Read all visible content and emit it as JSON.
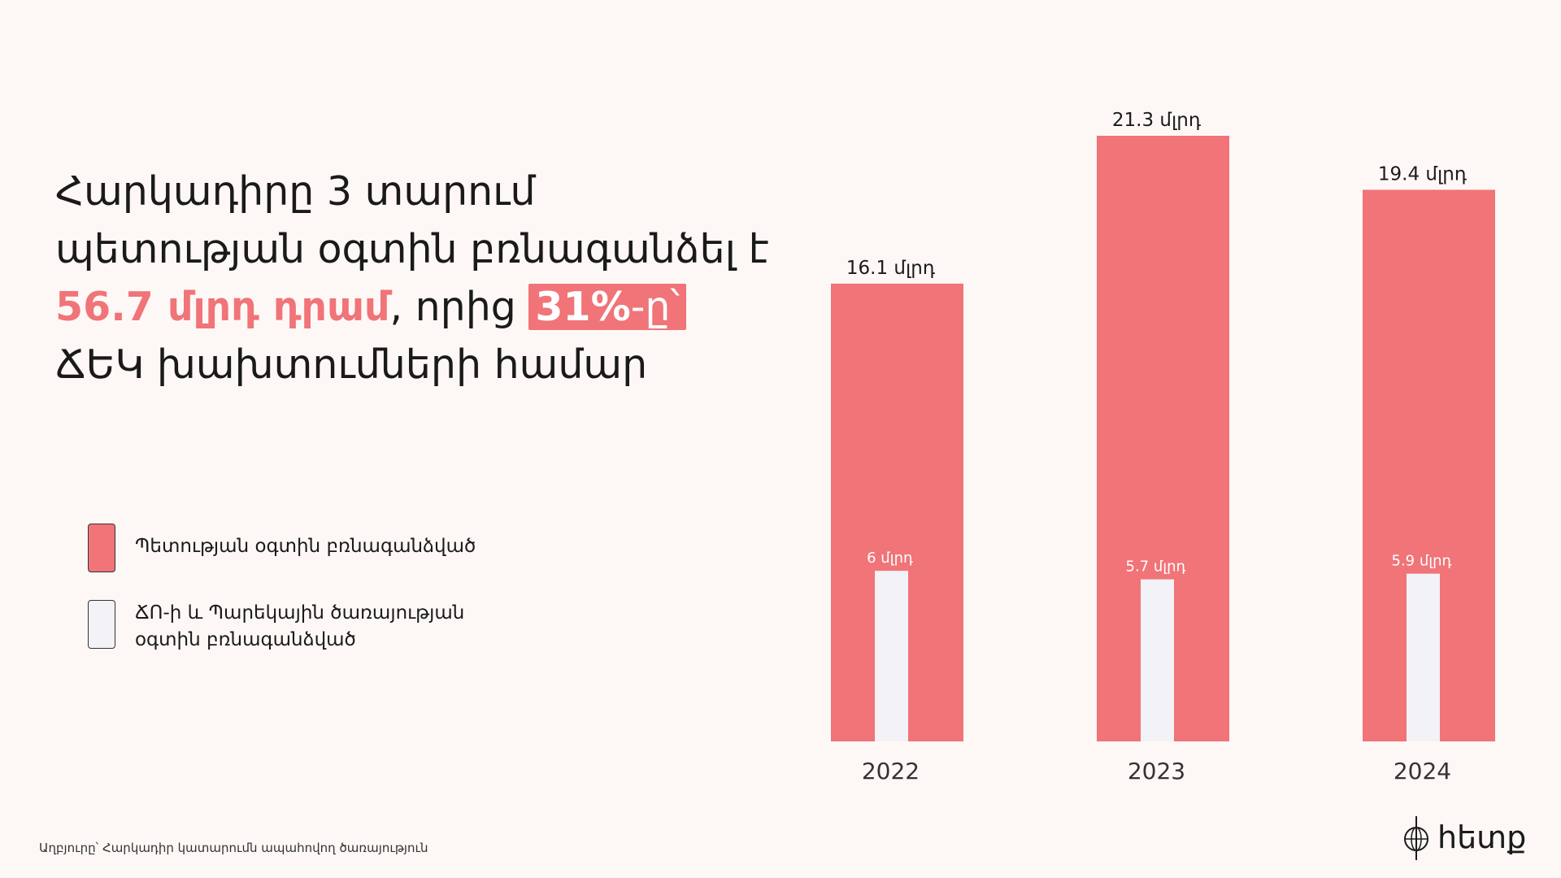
{
  "headline": {
    "part1": "Հարկադիրը 3 տարում պետության օգտին բռնագանձել է ",
    "amount": "56.7 մլրդ դրամ",
    "part2": ", որից ",
    "pct": "31%",
    "pct_suffix": "-ը՝",
    "part3": " ՃԵԿ խախտումների համար"
  },
  "legend": {
    "items": [
      {
        "label": "Պետության օգտին բռնագանձված",
        "color": "#f07478"
      },
      {
        "label": "ՃՈ-ի և Պարեկային ծառայության օգտին բռնագանձված",
        "color": "#f2f2f7"
      }
    ]
  },
  "chart_data": {
    "type": "bar",
    "categories": [
      "2022",
      "2023",
      "2024"
    ],
    "series": [
      {
        "name": "Պետության օգտին բռնագանձված",
        "values": [
          16.1,
          21.3,
          19.4
        ],
        "labels": [
          "16.1 մլրդ",
          "21.3 մլրդ",
          "19.4 մլրդ"
        ],
        "color": "#f07478"
      },
      {
        "name": "ՃՈ-ի և Պարեկային ծառայության օգտին բռնագանձված",
        "values": [
          6,
          5.7,
          5.9
        ],
        "labels": [
          "6 մլրդ",
          "5.7 մլրդ",
          "5.9 մլրդ"
        ],
        "color": "#f2f2f7"
      }
    ],
    "ylim": [
      0,
      21.3
    ],
    "grid": false
  },
  "source": "Աղբյուրը՝ Հարկադիր կատարումն ապահովող ծառայություն",
  "logo": {
    "text": "hետք"
  }
}
